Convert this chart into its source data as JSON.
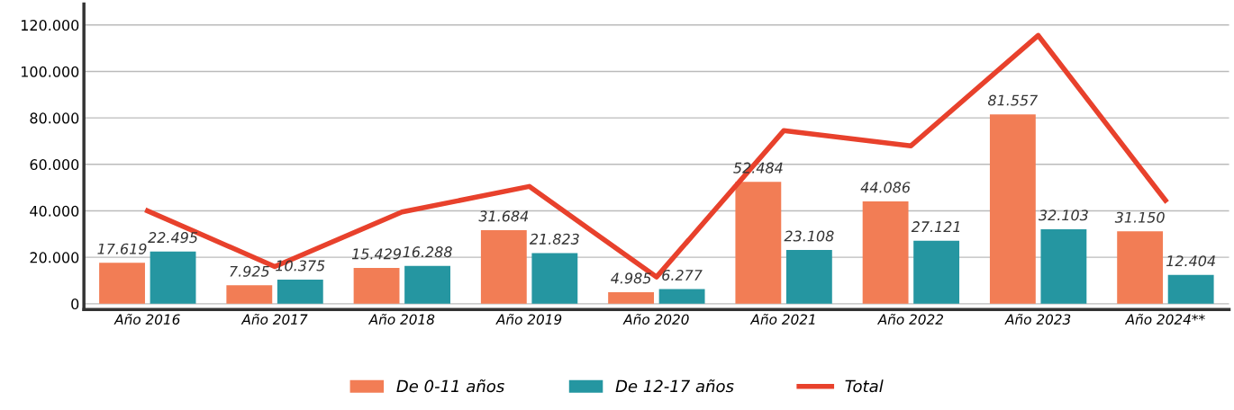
{
  "chart_data": {
    "type": "bar",
    "categories": [
      "Año 2016",
      "Año 2017",
      "Año 2018",
      "Año 2019",
      "Año 2020",
      "Año 2021",
      "Año 2022",
      "Año 2023",
      "Año 2024**"
    ],
    "series": [
      {
        "name": "De 0-11 años",
        "color": "#f27d55",
        "values": [
          17619,
          7925,
          15429,
          31684,
          4985,
          52484,
          44086,
          81557,
          31150
        ],
        "value_labels": [
          "17.619",
          "7.925",
          "15.429",
          "31.684",
          "4.985",
          "52.484",
          "44.086",
          "81.557",
          "31.150"
        ]
      },
      {
        "name": "De 12-17 años",
        "color": "#2596a1",
        "values": [
          22495,
          10375,
          16288,
          21823,
          6277,
          23108,
          27121,
          32103,
          12404
        ],
        "value_labels": [
          "22.495",
          "10.375",
          "16.288",
          "21.823",
          "6.277",
          "23.108",
          "27.121",
          "32.103",
          "12.404"
        ]
      },
      {
        "name": "Total",
        "type": "line",
        "color": "#e8412c",
        "values": [
          40000,
          16000,
          39500,
          50500,
          11500,
          74500,
          68000,
          115500,
          44500
        ]
      }
    ],
    "ylim": [
      -2500,
      129000
    ],
    "yticks": [
      {
        "value": 0,
        "label": "0"
      },
      {
        "value": 20000,
        "label": "20.000"
      },
      {
        "value": 40000,
        "label": "40.000"
      },
      {
        "value": 60000,
        "label": "60.000"
      },
      {
        "value": 80000,
        "label": "80.000"
      },
      {
        "value": 100000,
        "label": "100.000"
      },
      {
        "value": 120000,
        "label": "120.000"
      }
    ],
    "grid": "y",
    "legend": "bottom"
  }
}
